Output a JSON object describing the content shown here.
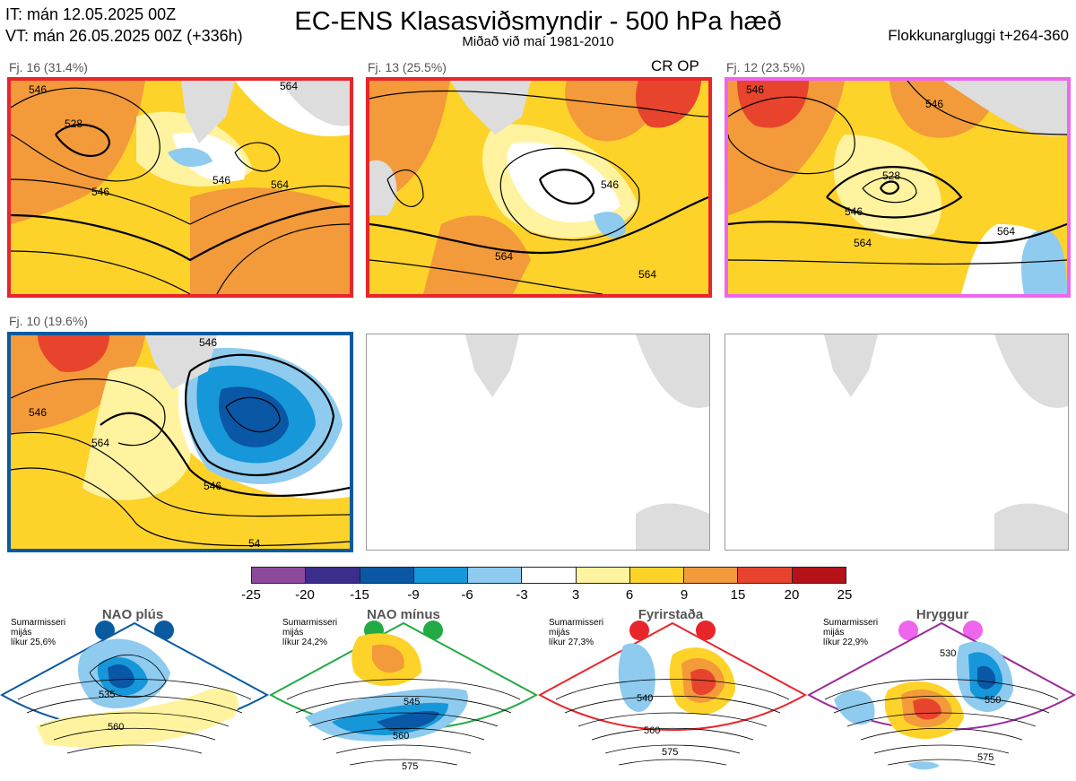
{
  "header": {
    "it_line": "IT: mán 12.05.2025 00Z",
    "vt_line": "VT: mán 26.05.2025 00Z  (+336h)",
    "title": "EC-ENS Klasasviðsmyndir - 500 hPa hæð",
    "subtitle": "Miðað við maí 1981-2010",
    "window": "Flokkunargluggi t+264-360"
  },
  "panels": [
    {
      "label": "Fj. 16 (31.4%)",
      "contours": [
        "546",
        "528",
        "546",
        "546",
        "564",
        "564"
      ],
      "border_color": "#e8252a"
    },
    {
      "label": "Fj. 13 (25.5%)",
      "tag": "CR OP",
      "contours": [
        "546",
        "564",
        "564"
      ],
      "border_color": "#e8252a"
    },
    {
      "label": "Fj. 12 (23.5%)",
      "contours": [
        "546",
        "546",
        "528",
        "546",
        "564",
        "564"
      ],
      "border_color": "#ee66ee"
    },
    {
      "label": "Fj. 10 (19.6%)",
      "contours": [
        "546",
        "546",
        "564",
        "546",
        "54"
      ],
      "border_color": "#0a5aa0"
    }
  ],
  "colorbar": {
    "colors": [
      "#8b4a9c",
      "#3a2d8c",
      "#0a57a5",
      "#1597d9",
      "#8ecbef",
      "#ffffff",
      "#fff3a0",
      "#fdd32a",
      "#f39a3a",
      "#e8442d",
      "#b51218"
    ],
    "ticks": [
      "-25",
      "-20",
      "-15",
      "-9",
      "-6",
      "-3",
      "3",
      "6",
      "9",
      "15",
      "20",
      "25"
    ]
  },
  "regimes": [
    {
      "name": "NAO plús",
      "info": [
        "Sumarmisseri",
        "mijás",
        "líkur 25,6%"
      ],
      "contours": [
        "535",
        "560"
      ],
      "color": "#0a5aa0"
    },
    {
      "name": "NAO mínus",
      "info": [
        "Sumarmisseri",
        "mijás",
        "líkur 24,2%"
      ],
      "contours": [
        "545",
        "560",
        "575"
      ],
      "color": "#22aa44"
    },
    {
      "name": "Fyrirstaða",
      "info": [
        "Sumarmisseri",
        "mijás",
        "líkur 27,3%"
      ],
      "contours": [
        "540",
        "560",
        "575"
      ],
      "color": "#e8252a"
    },
    {
      "name": "Hryggur",
      "info": [
        "Sumarmisseri",
        "mijás",
        "líkur 22,9%"
      ],
      "contours": [
        "530",
        "550",
        "575"
      ],
      "color": "#9a2a9a"
    }
  ]
}
